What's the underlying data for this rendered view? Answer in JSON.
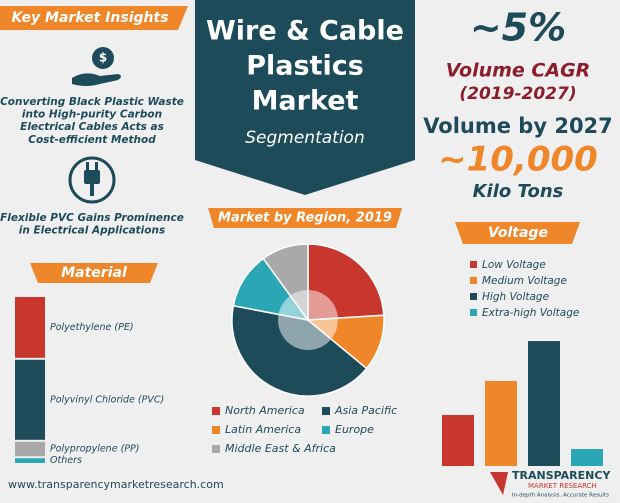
{
  "header": {
    "title_lines": [
      "Wire & Cable",
      "Plastics",
      "Market"
    ],
    "subtitle": "Segmentation"
  },
  "insights": {
    "title": "Key Market Insights",
    "items": [
      "Converting Black Plastic Waste into High-purity Carbon Electrical Cables Acts as Cost-efficient Method",
      "Flexible PVC Gains Prominence in Electrical Applications"
    ]
  },
  "stats": {
    "cagr": "~5%",
    "cagr_label": "Volume CAGR",
    "cagr_period": "(2019-2027)",
    "volume_label": "Volume by 2027",
    "volume": "~10,000",
    "volume_unit": "Kilo Tons"
  },
  "footer": {
    "url": "www.transparencymarketresearch.com",
    "brand": "TRANSPARENCY",
    "brand_sub": "MARKET RESEARCH",
    "tagline": "In-depth Analysis. Accurate Results"
  },
  "chart_data": [
    {
      "type": "stacked-bar",
      "title": "Material",
      "series": [
        {
          "name": "Polyethylene (PE)",
          "color": "#c8372d",
          "values": [
            38
          ]
        },
        {
          "name": "Polyvinyl Chloride (PVC)",
          "color": "#1d4b5a",
          "values": [
            50
          ]
        },
        {
          "name": "Polypropylene (PP)",
          "color": "#a9a9a9",
          "values": [
            9
          ]
        },
        {
          "name": "Others",
          "color": "#2ba6b5",
          "values": [
            3
          ]
        }
      ]
    },
    {
      "type": "pie",
      "title": "Market by Region, 2019",
      "categories": [
        "North America",
        "Latin America",
        "Asia Pacific",
        "Europe",
        "Middle East & Africa"
      ],
      "values": [
        24,
        12,
        42,
        12,
        10
      ],
      "colors": [
        "#c8372d",
        "#f0862a",
        "#1d4b5a",
        "#2ba6b5",
        "#a9a9a9"
      ]
    },
    {
      "type": "bar",
      "title": "Voltage",
      "categories": [
        "Low Voltage",
        "Medium Voltage",
        "High Voltage",
        "Extra-high Voltage"
      ],
      "values": [
        60,
        100,
        147,
        20
      ],
      "colors": [
        "#c8372d",
        "#f0862a",
        "#1d4b5a",
        "#2ba6b5"
      ]
    }
  ]
}
